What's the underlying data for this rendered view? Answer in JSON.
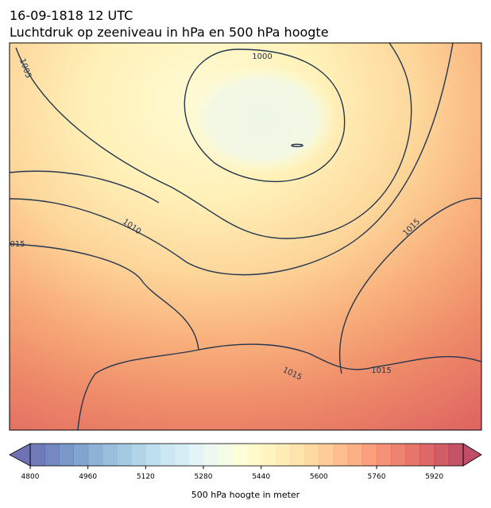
{
  "header": {
    "title": "16-09-1818 12 UTC",
    "subtitle": "Luchtdruk op zeeniveau in hPa en 500 hPa hoogte"
  },
  "map": {
    "isobar_labels": [
      "1000",
      "1005",
      "1010",
      "015",
      "1015",
      "1015",
      "1015"
    ]
  },
  "colorbar": {
    "label": "500 hPa hoogte in meter",
    "range": [
      4800,
      6000
    ],
    "step": 40,
    "ticks": [
      4800,
      4960,
      5120,
      5280,
      5440,
      5600,
      5760,
      5920
    ]
  }
}
